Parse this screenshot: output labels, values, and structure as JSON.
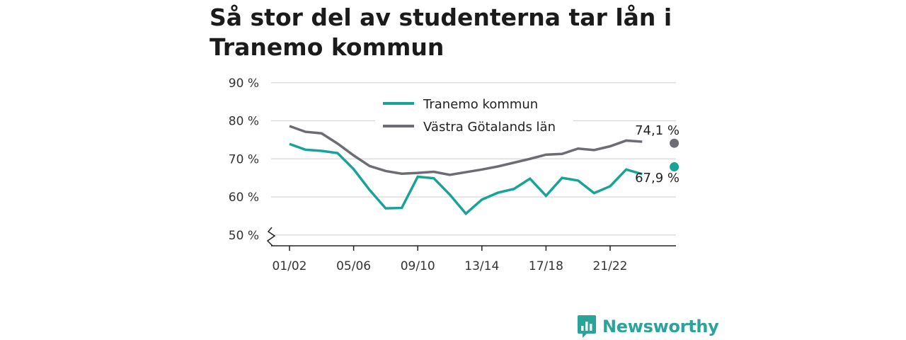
{
  "title": "Så stor del av studenterna tar lån i Tranemo kommun",
  "brand": {
    "name": "Newsworthy",
    "icon": "newsworthy-logo-icon",
    "color": "#2aa39a"
  },
  "chart_data": {
    "type": "line",
    "title": "Så stor del av studenterna tar lån i Tranemo kommun",
    "xlabel": "",
    "ylabel": "",
    "x_tick_labels": [
      "01/02",
      "05/06",
      "09/10",
      "13/14",
      "17/18",
      "21/22"
    ],
    "x_tick_indices": [
      0,
      4,
      8,
      12,
      16,
      20
    ],
    "y_ticks": [
      50,
      60,
      70,
      80,
      90
    ],
    "y_tick_labels": [
      "50 %",
      "60 %",
      "70 %",
      "80 %",
      "90 %"
    ],
    "ylim": [
      48,
      90
    ],
    "y_axis_break": true,
    "grid": true,
    "legend_position": "top-center",
    "series": [
      {
        "name": "Tranemo kommun",
        "color": "#17a398",
        "values": [
          73.9,
          72.4,
          72.1,
          71.5,
          67.3,
          61.8,
          57.0,
          57.1,
          65.3,
          64.9,
          60.6,
          55.6,
          59.3,
          61.1,
          62.1,
          64.8,
          60.3,
          65.0,
          64.3,
          61.0,
          62.8,
          67.2,
          66.0,
          null,
          67.9
        ],
        "end_label": "67,9 %"
      },
      {
        "name": "Västra Götalands län",
        "color": "#6d6c73",
        "values": [
          78.6,
          77.1,
          76.7,
          74.0,
          70.9,
          68.1,
          66.8,
          66.1,
          66.3,
          66.6,
          65.8,
          66.5,
          67.2,
          68.0,
          69.0,
          70.0,
          71.1,
          71.3,
          72.7,
          72.3,
          73.3,
          74.8,
          74.5,
          null,
          74.1
        ],
        "end_label": "74,1 %"
      }
    ]
  }
}
